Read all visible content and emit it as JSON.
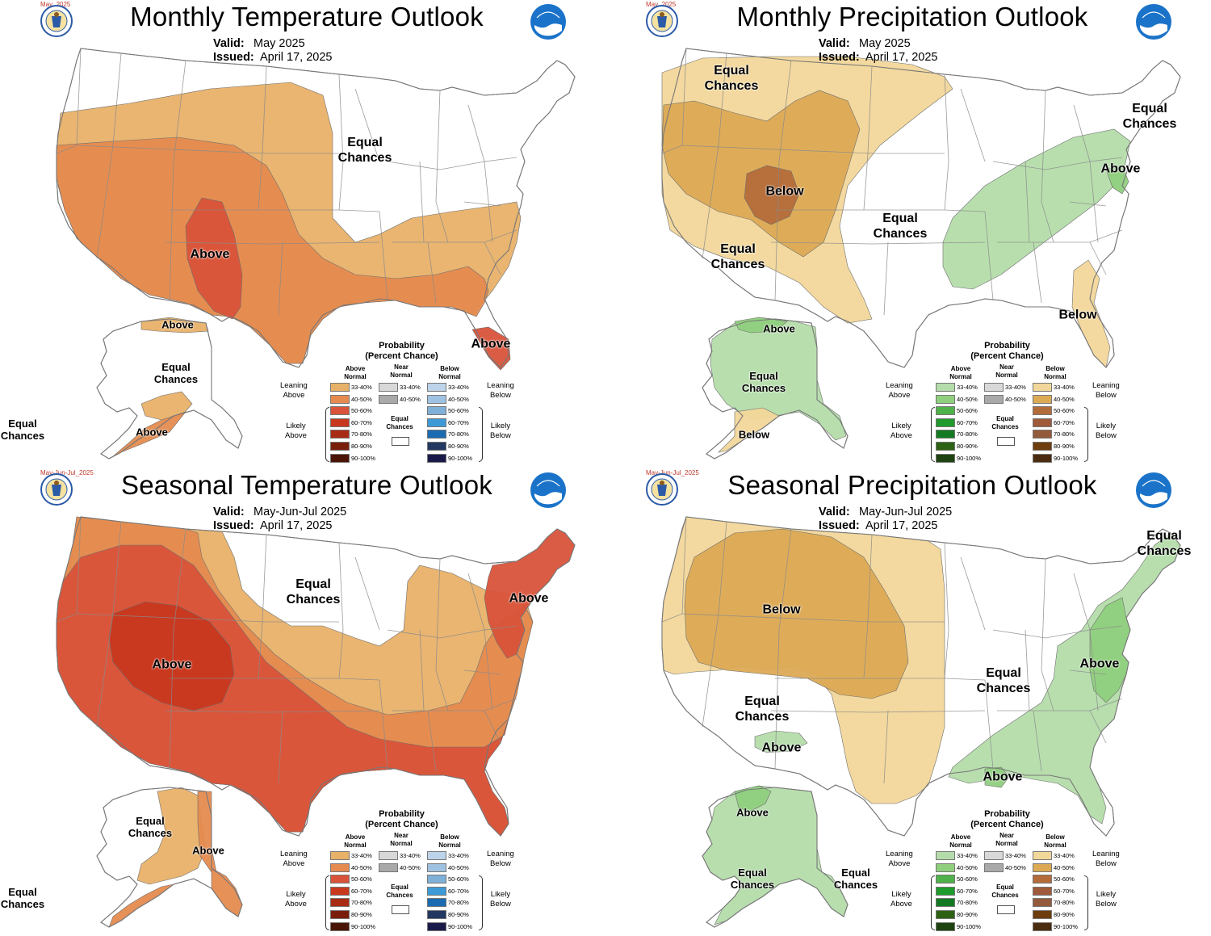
{
  "panels": [
    {
      "id": "p0",
      "title": "Monthly Temperature Outlook",
      "period_tag": "May_2025",
      "valid_label": "Valid:",
      "valid_value": "May 2025",
      "issued_label": "Issued:",
      "issued_value": "April 17, 2025",
      "kind": "temp",
      "region_labels": [
        {
          "text": "Equal\nChances",
          "size": "normal"
        },
        {
          "text": "Above",
          "size": "normal"
        },
        {
          "text": "Above",
          "size": "normal"
        },
        {
          "text": "Above",
          "size": "small"
        },
        {
          "text": "Equal\nChances",
          "size": "small"
        },
        {
          "text": "Above",
          "size": "small"
        },
        {
          "text": "Equal\nChances",
          "size": "small"
        }
      ]
    },
    {
      "id": "p1",
      "title": "Monthly Precipitation Outlook",
      "period_tag": "May_2025",
      "valid_label": "Valid:",
      "valid_value": "May 2025",
      "issued_label": "Issued:",
      "issued_value": "April 17, 2025",
      "kind": "precip",
      "region_labels": [
        {
          "text": "Equal\nChances",
          "size": "normal"
        },
        {
          "text": "Below",
          "size": "normal"
        },
        {
          "text": "Equal\nChances",
          "size": "normal"
        },
        {
          "text": "Equal\nChances",
          "size": "normal"
        },
        {
          "text": "Equal\nChances",
          "size": "normal"
        },
        {
          "text": "Above",
          "size": "normal"
        },
        {
          "text": "Below",
          "size": "normal"
        },
        {
          "text": "Above",
          "size": "small"
        },
        {
          "text": "Equal\nChances",
          "size": "small"
        },
        {
          "text": "Below",
          "size": "small"
        }
      ]
    },
    {
      "id": "p2",
      "title": "Seasonal Temperature Outlook",
      "period_tag": "May-Jun-Jul_2025",
      "valid_label": "Valid:",
      "valid_value": "May-Jun-Jul 2025",
      "issued_label": "Issued:",
      "issued_value": "April 17, 2025",
      "kind": "temp",
      "region_labels": [
        {
          "text": "Equal\nChances",
          "size": "normal"
        },
        {
          "text": "Above",
          "size": "normal"
        },
        {
          "text": "Above",
          "size": "normal"
        },
        {
          "text": "Equal\nChances",
          "size": "small"
        },
        {
          "text": "Above",
          "size": "small"
        },
        {
          "text": "Equal\nChances",
          "size": "small"
        }
      ]
    },
    {
      "id": "p3",
      "title": "Seasonal Precipitation Outlook",
      "period_tag": "May-Jun-Jul_2025",
      "valid_label": "Valid:",
      "valid_value": "May-Jun-Jul 2025",
      "issued_label": "Issued:",
      "issued_value": "April 17, 2025",
      "kind": "precip",
      "region_labels": [
        {
          "text": "Below",
          "size": "normal"
        },
        {
          "text": "Equal\nChances",
          "size": "normal"
        },
        {
          "text": "Equal\nChances",
          "size": "normal"
        },
        {
          "text": "Equal\nChances",
          "size": "normal"
        },
        {
          "text": "Above",
          "size": "normal"
        },
        {
          "text": "Above",
          "size": "normal"
        },
        {
          "text": "Above",
          "size": "normal"
        },
        {
          "text": "Above",
          "size": "small"
        },
        {
          "text": "Equal\nChances",
          "size": "small"
        },
        {
          "text": "Equal\nChances",
          "size": "small"
        }
      ]
    }
  ],
  "legend": {
    "title": "Probability\n(Percent Chance)",
    "ranges": [
      "33-40%",
      "40-50%",
      "50-60%",
      "60-70%",
      "70-80%",
      "80-90%",
      "90-100%"
    ],
    "near_ranges": [
      "33-40%",
      "40-50%"
    ],
    "above_head": "Above\nNormal",
    "near_head": "Near\nNormal",
    "below_head": "Below\nNormal",
    "equal_chances": "Equal\nChances",
    "leaning_above": "Leaning\nAbove",
    "likely_above": "Likely\nAbove",
    "leaning_below": "Leaning\nBelow",
    "likely_below": "Likely\nBelow"
  },
  "colors": {
    "temp_above": [
      "#e8b169",
      "#e58b4f",
      "#d9533a",
      "#c8381f",
      "#a82c14",
      "#7a1e0c",
      "#4a1406"
    ],
    "temp_below": [
      "#bcd3ea",
      "#9fc2e2",
      "#7fb0d8",
      "#3d9ad6",
      "#1b6bb0",
      "#233860",
      "#1a1a4a"
    ],
    "precip_above": [
      "#b4dcaa",
      "#8fcf7e",
      "#4fb14a",
      "#1f9a2c",
      "#137a23",
      "#2d6114",
      "#1e4310"
    ],
    "precip_below": [
      "#f2d79a",
      "#dcaa55",
      "#b46b3a",
      "#9e5a3a",
      "#935b3c",
      "#6d3d0e",
      "#4a2c10"
    ],
    "near": [
      "#d8d8d8",
      "#a9a9a9"
    ],
    "noaa_blue": "#1a73c9",
    "map_outline": "#8a8a8a"
  }
}
